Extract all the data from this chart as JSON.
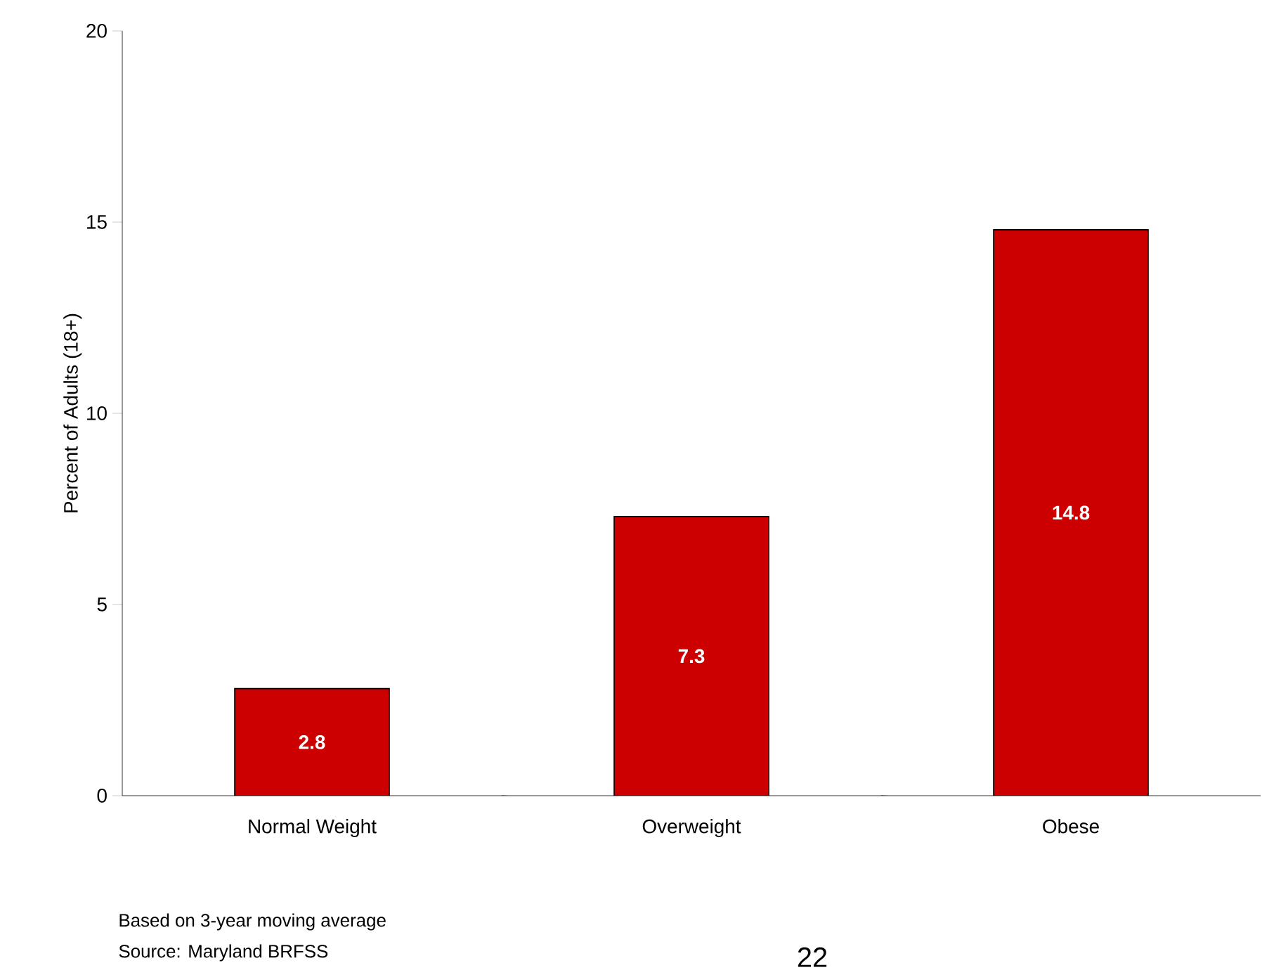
{
  "chart_data": {
    "type": "bar",
    "ylabel": "Percent of Adults (18+)",
    "categories": [
      "Normal Weight",
      "Overweight",
      "Obese"
    ],
    "values": [
      2.8,
      7.3,
      14.8
    ],
    "color": "#cc0000",
    "ylim": [
      0,
      20
    ],
    "yticks": [
      0,
      5,
      10,
      15,
      20
    ],
    "data_labels": true,
    "annotations": [
      "Based on 3-year moving average",
      "Source: Maryland BRFSS",
      "22"
    ]
  }
}
